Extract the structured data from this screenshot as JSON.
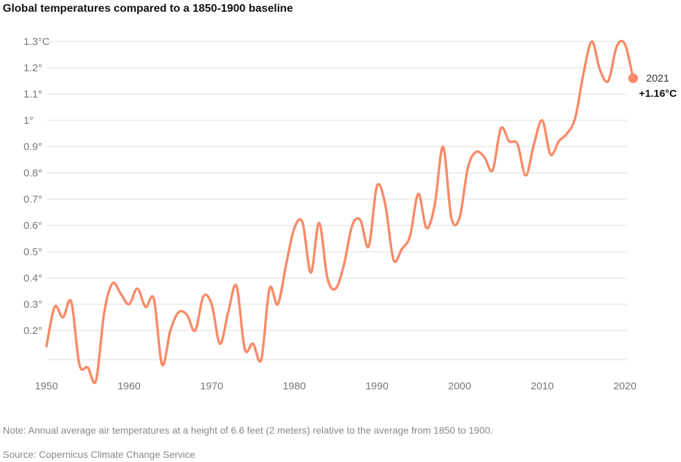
{
  "title": "Global temperatures compared to a 1850-1900 baseline",
  "note": "Note: Annual average air temperatures at a height of 6.6 feet (2 meters) relative to the average from 1850 to 1900.",
  "source": "Source: Copernicus Climate Change Service",
  "colors": {
    "line": "#f98a68",
    "grid": "#dddddd",
    "tick": "#777777"
  },
  "end_label": {
    "year": "2021",
    "value": "+1.16°C"
  },
  "chart_data": {
    "type": "line",
    "title": "Global temperatures compared to a 1850-1900 baseline",
    "xlabel": "",
    "ylabel": "",
    "xlim": [
      1950,
      2021
    ],
    "ylim": [
      0.07,
      1.3
    ],
    "grid": true,
    "y_ticks": [
      {
        "value": 0.2,
        "label": "0.2°"
      },
      {
        "value": 0.3,
        "label": "0.3°"
      },
      {
        "value": 0.4,
        "label": "0.4°"
      },
      {
        "value": 0.5,
        "label": "0.5°"
      },
      {
        "value": 0.6,
        "label": "0.6°"
      },
      {
        "value": 0.7,
        "label": "0.7°"
      },
      {
        "value": 0.8,
        "label": "0.8°"
      },
      {
        "value": 0.9,
        "label": "0.9°"
      },
      {
        "value": 1.0,
        "label": "1°"
      },
      {
        "value": 1.1,
        "label": "1.1°"
      },
      {
        "value": 1.2,
        "label": "1.2°"
      },
      {
        "value": 1.3,
        "label": "1.3°C"
      }
    ],
    "x_ticks": [
      {
        "value": 1950,
        "label": "1950"
      },
      {
        "value": 1960,
        "label": "1960"
      },
      {
        "value": 1970,
        "label": "1970"
      },
      {
        "value": 1980,
        "label": "1980"
      },
      {
        "value": 1990,
        "label": "1990"
      },
      {
        "value": 2000,
        "label": "2000"
      },
      {
        "value": 2010,
        "label": "2010"
      },
      {
        "value": 2020,
        "label": "2020"
      }
    ],
    "series": [
      {
        "x": [
          1950,
          1951,
          1952,
          1953,
          1954,
          1955,
          1956,
          1957,
          1958,
          1959,
          1960,
          1961,
          1962,
          1963,
          1964,
          1965,
          1966,
          1967,
          1968,
          1969,
          1970,
          1971,
          1972,
          1973,
          1974,
          1975,
          1976,
          1977,
          1978,
          1979,
          1980,
          1981,
          1982,
          1983,
          1984,
          1985,
          1986,
          1987,
          1988,
          1989,
          1990,
          1991,
          1992,
          1993,
          1994,
          1995,
          1996,
          1997,
          1998,
          1999,
          2000,
          2001,
          2002,
          2003,
          2004,
          2005,
          2006,
          2007,
          2008,
          2009,
          2010,
          2011,
          2012,
          2013,
          2014,
          2015,
          2016,
          2017,
          2018,
          2019,
          2020,
          2021
        ],
        "values": [
          0.14,
          0.29,
          0.25,
          0.31,
          0.07,
          0.06,
          0.01,
          0.27,
          0.38,
          0.34,
          0.3,
          0.36,
          0.29,
          0.32,
          0.07,
          0.2,
          0.27,
          0.26,
          0.2,
          0.33,
          0.3,
          0.15,
          0.27,
          0.37,
          0.13,
          0.15,
          0.09,
          0.36,
          0.3,
          0.45,
          0.59,
          0.61,
          0.42,
          0.61,
          0.4,
          0.36,
          0.45,
          0.6,
          0.62,
          0.52,
          0.75,
          0.68,
          0.47,
          0.51,
          0.56,
          0.72,
          0.59,
          0.68,
          0.9,
          0.63,
          0.63,
          0.82,
          0.88,
          0.86,
          0.81,
          0.97,
          0.92,
          0.91,
          0.79,
          0.91,
          1.0,
          0.87,
          0.92,
          0.95,
          1.01,
          1.18,
          1.3,
          1.19,
          1.15,
          1.28,
          1.29,
          1.16
        ]
      }
    ]
  }
}
